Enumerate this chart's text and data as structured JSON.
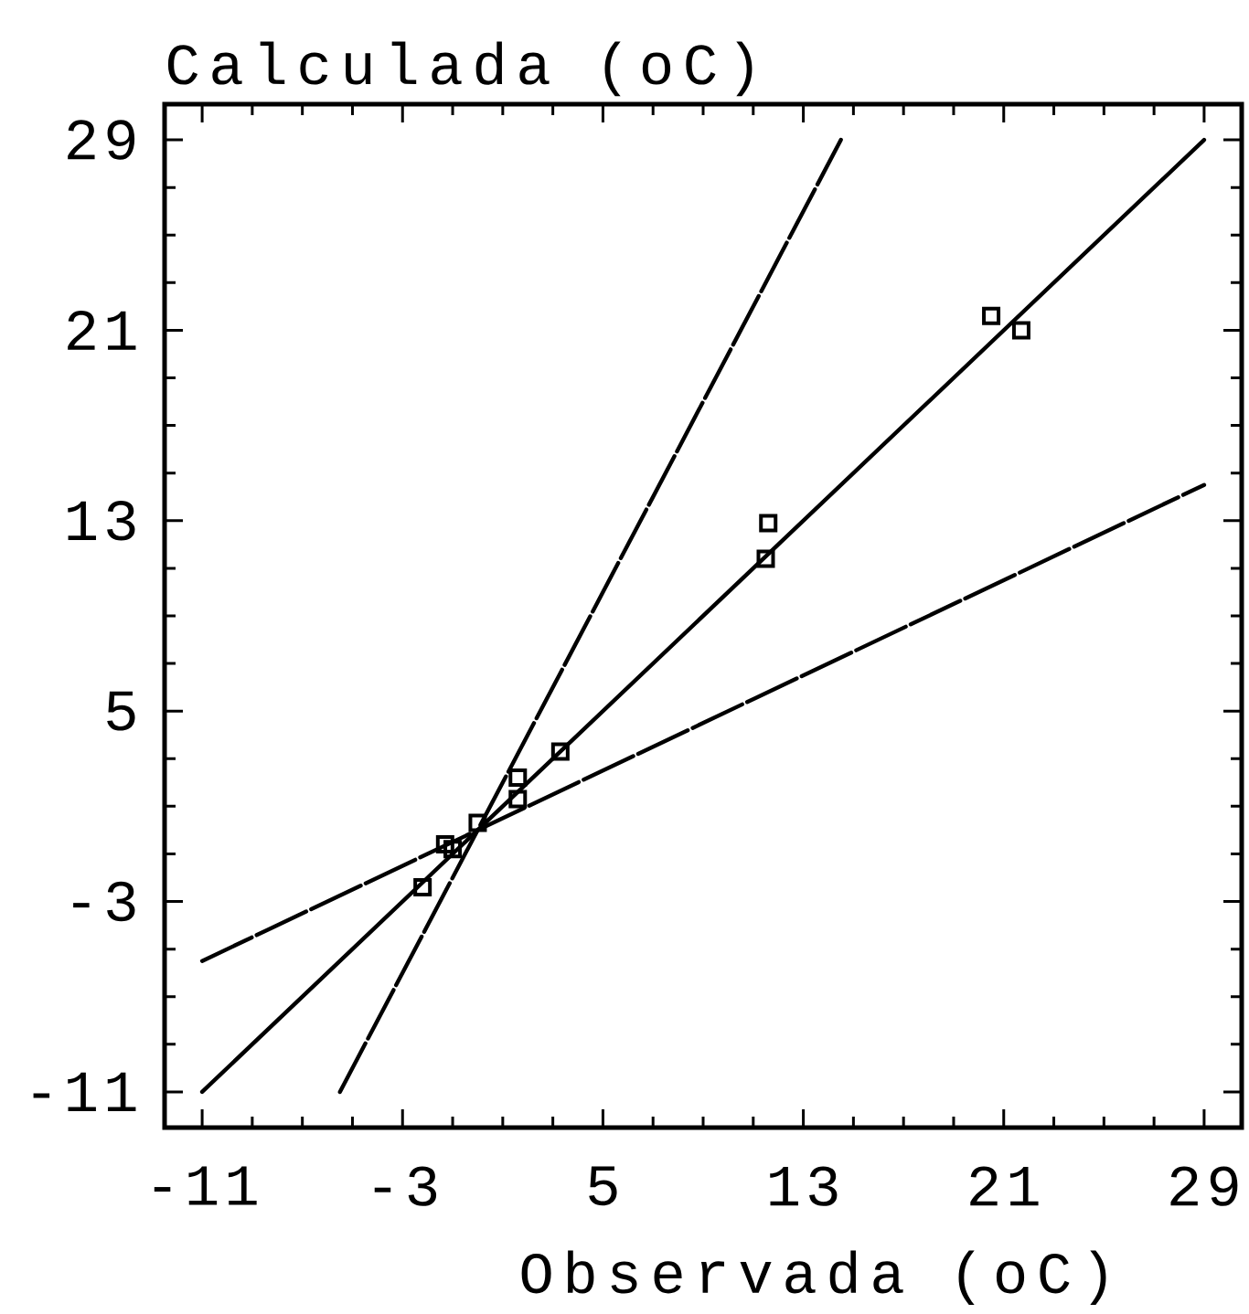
{
  "chart_data": {
    "type": "scatter",
    "xlabel": "Observada (oC)",
    "ylabel": "Calculada (oC)",
    "xlim": [
      -12.5,
      30.5
    ],
    "ylim": [
      -12.5,
      30.5
    ],
    "xticks": [
      -11,
      {
        "value": -9,
        "label": null
      },
      {
        "value": -7,
        "label": null
      },
      {
        "value": -5,
        "label": null
      },
      -3,
      {
        "value": -1,
        "label": null
      },
      {
        "value": 1,
        "label": null
      },
      {
        "value": 3,
        "label": null
      },
      5,
      {
        "value": 7,
        "label": null
      },
      {
        "value": 9,
        "label": null
      },
      {
        "value": 11,
        "label": null
      },
      13,
      {
        "value": 15,
        "label": null
      },
      {
        "value": 17,
        "label": null
      },
      {
        "value": 19,
        "label": null
      },
      21,
      {
        "value": 23,
        "label": null
      },
      {
        "value": 25,
        "label": null
      },
      {
        "value": 27,
        "label": null
      },
      29
    ],
    "yticks": [
      -11,
      {
        "value": -9,
        "label": null
      },
      {
        "value": -7,
        "label": null
      },
      {
        "value": -5,
        "label": null
      },
      -3,
      {
        "value": -1,
        "label": null
      },
      {
        "value": 1,
        "label": null
      },
      {
        "value": 3,
        "label": null
      },
      5,
      {
        "value": 7,
        "label": null
      },
      {
        "value": 9,
        "label": null
      },
      {
        "value": 11,
        "label": null
      },
      13,
      {
        "value": 15,
        "label": null
      },
      {
        "value": 17,
        "label": null
      },
      {
        "value": 19,
        "label": null
      },
      21,
      {
        "value": 23,
        "label": null
      },
      {
        "value": 25,
        "label": null
      },
      {
        "value": 27,
        "label": null
      },
      29
    ],
    "series": [
      {
        "color": "#000000",
        "marker": "square",
        "x": [
          20.5,
          21.7,
          11.6,
          11.5,
          3.3,
          1.6,
          1.6,
          0.0,
          -1.3,
          -1.0,
          -2.2
        ],
        "values": [
          21.6,
          21.0,
          12.9,
          11.4,
          3.3,
          2.2,
          1.3,
          0.3,
          -0.6,
          -0.8,
          -2.4
        ]
      },
      {
        "type": "line",
        "color": "#000000",
        "line_style": "solid",
        "x": [
          -11,
          29
        ],
        "values": [
          -11,
          29
        ]
      },
      {
        "type": "line",
        "color": "#000000",
        "line_style": "dashed",
        "x": [
          -5.5,
          14.5
        ],
        "values": [
          -11,
          29
        ]
      },
      {
        "type": "line",
        "color": "#000000",
        "line_style": "dashed",
        "x": [
          -11,
          29
        ],
        "values": [
          -5.5,
          14.5
        ]
      }
    ]
  }
}
